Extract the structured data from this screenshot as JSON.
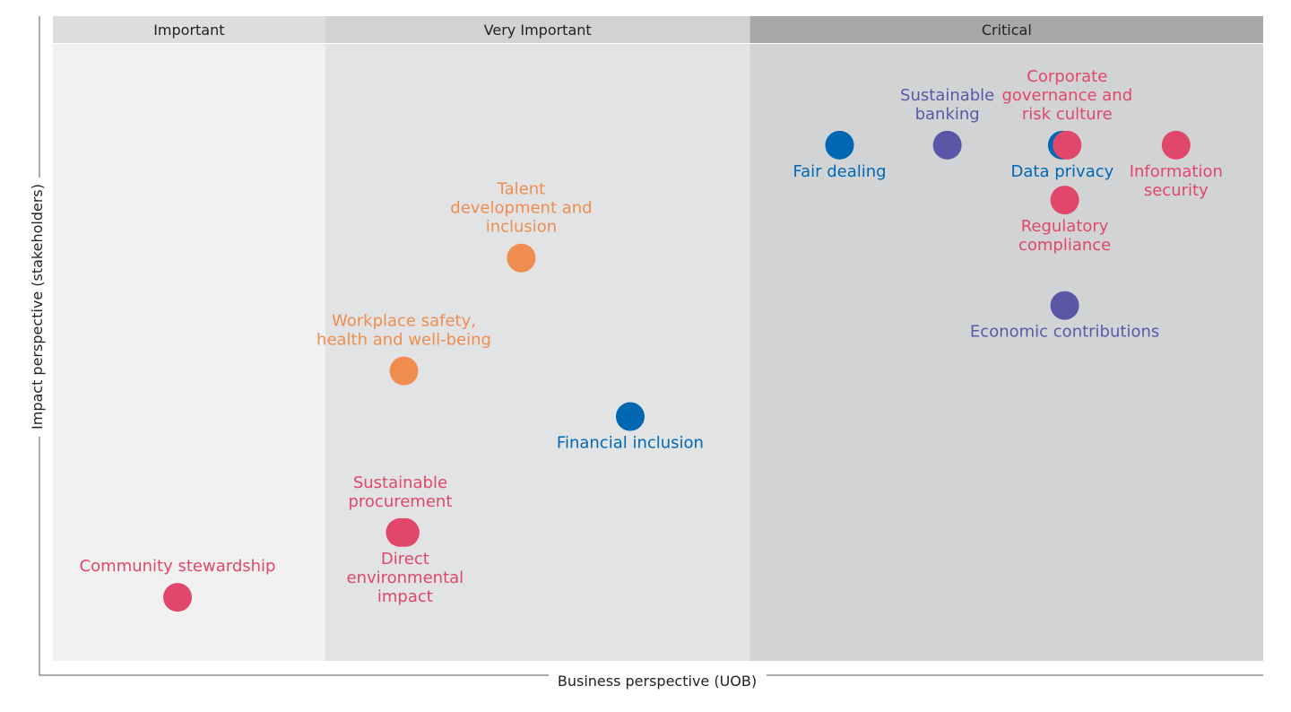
{
  "chart_data": {
    "type": "scatter",
    "title": "",
    "xlabel": "Business perspective (UOB)",
    "ylabel": "Impact perspective (stakeholders)",
    "xlim": [
      0,
      100
    ],
    "ylim": [
      0,
      100
    ],
    "grid": false,
    "zones": [
      {
        "label": "Important",
        "range": [
          0,
          22.5
        ],
        "band_color": "#dcdddf",
        "fill": "#f1f1f1"
      },
      {
        "label": "Very Important",
        "range": [
          22.5,
          57.6
        ],
        "band_color": "#d1d2d4",
        "fill": "#e2e3e5"
      },
      {
        "label": "Critical",
        "range": [
          57.6,
          100
        ],
        "band_color": "#a7a8aa",
        "fill": "#d2d3d5"
      }
    ],
    "colors": {
      "red": "#e0476b",
      "orange": "#ef8d4f",
      "blue": "#0068b3",
      "purple": "#5a58a6"
    },
    "points": [
      {
        "name": "Community stewardship",
        "x": 10.3,
        "y": 10.3,
        "color": "red",
        "label_lines": [
          "Community stewardship"
        ],
        "label_pos": "above"
      },
      {
        "name": "Sustainable procurement",
        "x": 28.7,
        "y": 20.8,
        "color": "red",
        "label_lines": [
          "Sustainable",
          "procurement"
        ],
        "label_pos": "above"
      },
      {
        "name": "Direct environmental impact",
        "x": 29.1,
        "y": 20.8,
        "color": "red",
        "label_lines": [
          "Direct",
          "environmental",
          "impact"
        ],
        "label_pos": "below"
      },
      {
        "name": "Workplace safety, health and well-being",
        "x": 29.0,
        "y": 47.0,
        "color": "orange",
        "label_lines": [
          "Workplace safety,",
          "health and well-being"
        ],
        "label_pos": "above"
      },
      {
        "name": "Talent development and inclusion",
        "x": 38.7,
        "y": 65.3,
        "color": "orange",
        "label_lines": [
          "Talent",
          "development and",
          "inclusion"
        ],
        "label_pos": "above"
      },
      {
        "name": "Financial inclusion",
        "x": 47.7,
        "y": 39.6,
        "color": "blue",
        "label_lines": [
          "Financial inclusion"
        ],
        "label_pos": "below"
      },
      {
        "name": "Fair dealing",
        "x": 65.0,
        "y": 83.6,
        "color": "blue",
        "label_lines": [
          "Fair dealing"
        ],
        "label_pos": "below"
      },
      {
        "name": "Sustainable banking",
        "x": 73.9,
        "y": 83.6,
        "color": "purple",
        "label_lines": [
          "Sustainable",
          "banking"
        ],
        "label_pos": "above"
      },
      {
        "name": "Data privacy",
        "x": 83.4,
        "y": 83.6,
        "color": "blue",
        "label_lines": [
          "Data privacy"
        ],
        "label_pos": "below"
      },
      {
        "name": "Corporate governance and risk culture",
        "x": 83.8,
        "y": 83.6,
        "color": "red",
        "label_lines": [
          "Corporate",
          "governance and",
          "risk culture"
        ],
        "label_pos": "above"
      },
      {
        "name": "Information security",
        "x": 92.8,
        "y": 83.6,
        "color": "red",
        "label_lines": [
          "Information",
          "security"
        ],
        "label_pos": "below"
      },
      {
        "name": "Regulatory compliance",
        "x": 83.6,
        "y": 74.7,
        "color": "red",
        "label_lines": [
          "Regulatory",
          "compliance"
        ],
        "label_pos": "below"
      },
      {
        "name": "Economic contributions",
        "x": 83.6,
        "y": 57.6,
        "color": "purple",
        "label_lines": [
          "Economic contributions"
        ],
        "label_pos": "below"
      }
    ]
  }
}
